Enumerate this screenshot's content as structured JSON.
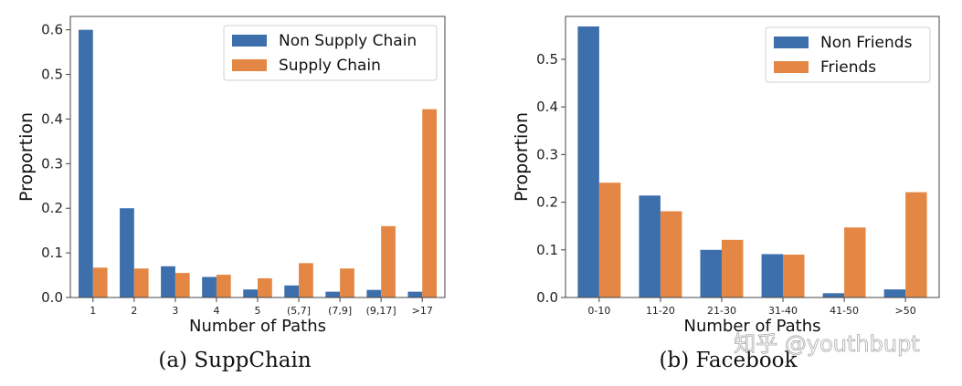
{
  "chart_data": [
    {
      "type": "bar",
      "caption": "(a) SuppChain",
      "xlabel": "Number of Paths",
      "ylabel": "Proportion",
      "ylim": [
        0,
        0.63
      ],
      "yticks": [
        "0.0",
        "0.1",
        "0.2",
        "0.3",
        "0.4",
        "0.5",
        "0.6"
      ],
      "yticks_values": [
        0,
        0.1,
        0.2,
        0.3,
        0.4,
        0.5,
        0.6
      ],
      "categories": [
        "1",
        "2",
        "3",
        "4",
        "5",
        "(5,7]",
        "(7,9]",
        "(9,17]",
        ">17"
      ],
      "legend_position": "top-right",
      "series": [
        {
          "name": "Non Supply Chain",
          "color": "#3d6fad",
          "values": [
            0.6,
            0.2,
            0.07,
            0.046,
            0.018,
            0.027,
            0.013,
            0.017,
            0.013
          ]
        },
        {
          "name": "Supply Chain",
          "color": "#e48744",
          "values": [
            0.067,
            0.065,
            0.055,
            0.051,
            0.043,
            0.077,
            0.065,
            0.16,
            0.422
          ]
        }
      ]
    },
    {
      "type": "bar",
      "caption": "(b) Facebook",
      "xlabel": "Number of Paths",
      "ylabel": "Proportion",
      "ylim": [
        0,
        0.59
      ],
      "yticks": [
        "0.0",
        "0.1",
        "0.2",
        "0.3",
        "0.4",
        "0.5"
      ],
      "yticks_values": [
        0,
        0.1,
        0.2,
        0.3,
        0.4,
        0.5
      ],
      "categories": [
        "0-10",
        "11-20",
        "21-30",
        "31-40",
        "41-50",
        ">50"
      ],
      "legend_position": "top-right",
      "series": [
        {
          "name": "Non Friends",
          "color": "#3d6fad",
          "values": [
            0.569,
            0.214,
            0.1,
            0.091,
            0.009,
            0.017
          ]
        },
        {
          "name": "Friends",
          "color": "#e48744",
          "values": [
            0.241,
            0.181,
            0.121,
            0.09,
            0.147,
            0.221
          ]
        }
      ]
    }
  ],
  "watermark": "知乎 @youthbupt"
}
